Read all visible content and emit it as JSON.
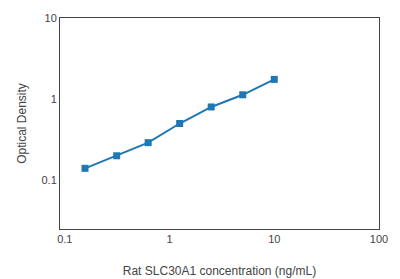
{
  "chart_data": {
    "type": "line",
    "x": [
      0.156,
      0.313,
      0.625,
      1.25,
      2.5,
      5.0,
      10.0
    ],
    "values": [
      0.14,
      0.2,
      0.29,
      0.5,
      0.8,
      1.13,
      1.75
    ],
    "xlabel": "Rat SLC30A1 concentration (ng/mL)",
    "ylabel": "Optical Density",
    "xlim": [
      0.09,
      100
    ],
    "ylim": [
      0.025,
      10
    ],
    "xticks": [
      0.1,
      1,
      10,
      100
    ],
    "yticks": [
      0.1,
      1,
      10
    ],
    "log": true,
    "grid": false,
    "marker": "square",
    "line_style": "solid"
  }
}
